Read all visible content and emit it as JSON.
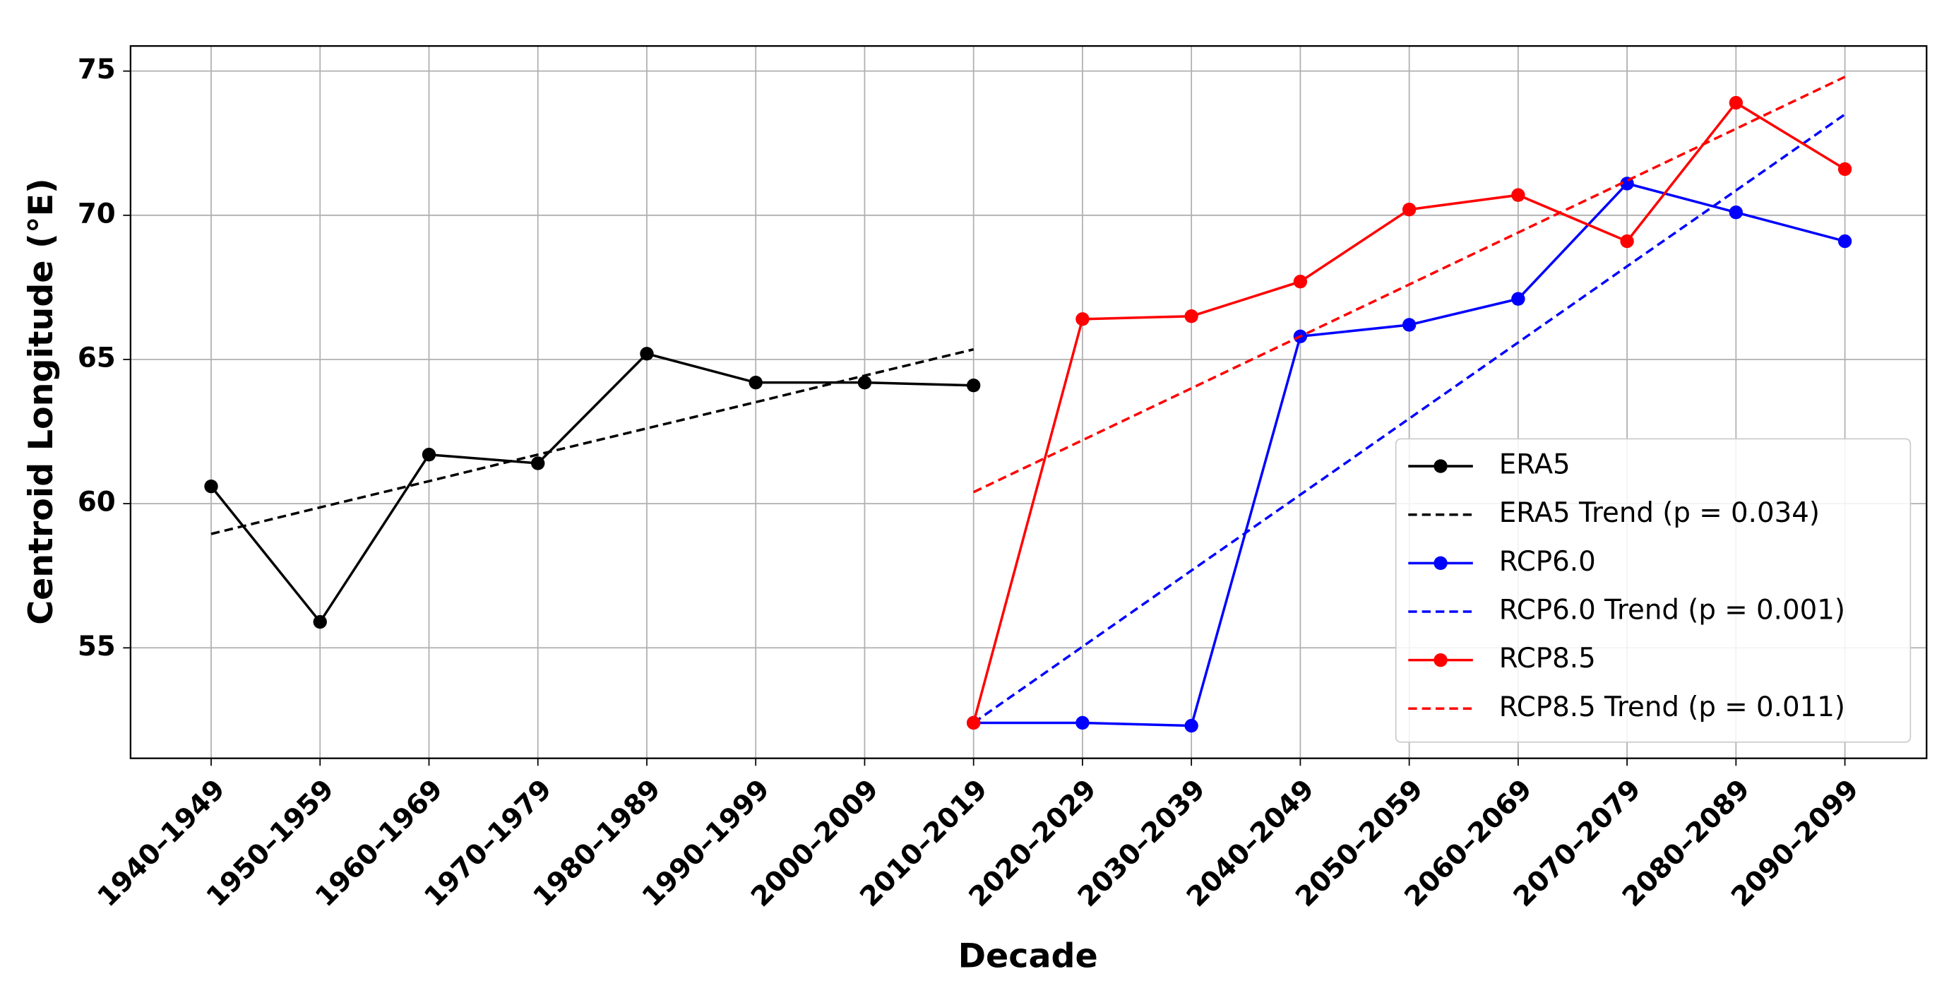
{
  "chart_data": {
    "type": "line",
    "xlabel": "Decade",
    "ylabel": "Centroid Longitude (°E)",
    "categories": [
      "1940–1949",
      "1950–1959",
      "1960–1969",
      "1970–1979",
      "1980–1989",
      "1990–1999",
      "2000–2009",
      "2010–2019",
      "2020–2029",
      "2030–2039",
      "2040–2049",
      "2050–2059",
      "2060–2069",
      "2070–2079",
      "2080–2089",
      "2090–2099"
    ],
    "ylim": [
      51.17,
      75.87
    ],
    "yticks": [
      55,
      60,
      65,
      70,
      75
    ],
    "grid": true,
    "legend": "lower right",
    "series": [
      {
        "name": "ERA5",
        "color": "#000000",
        "linestyle": "solid",
        "marker": true,
        "values": [
          60.6,
          55.9,
          61.7,
          61.4,
          65.2,
          64.2,
          64.2,
          64.1,
          null,
          null,
          null,
          null,
          null,
          null,
          null,
          null
        ]
      },
      {
        "name": "ERA5 Trend (p = 0.034)",
        "color": "#000000",
        "linestyle": "dashed",
        "marker": false,
        "values": [
          58.95,
          59.87,
          60.78,
          61.7,
          62.61,
          63.52,
          64.44,
          65.35,
          null,
          null,
          null,
          null,
          null,
          null,
          null,
          null
        ]
      },
      {
        "name": "RCP6.0",
        "color": "#0000ff",
        "linestyle": "solid",
        "marker": true,
        "values": [
          null,
          null,
          null,
          null,
          null,
          null,
          null,
          52.4,
          52.4,
          52.3,
          65.8,
          66.2,
          67.1,
          71.1,
          70.1,
          69.1
        ]
      },
      {
        "name": "RCP6.0 Trend (p = 0.001)",
        "color": "#0000ff",
        "linestyle": "dashed",
        "marker": false,
        "values": [
          null,
          null,
          null,
          null,
          null,
          null,
          null,
          52.4,
          55.04,
          57.68,
          60.31,
          62.95,
          65.59,
          68.23,
          70.86,
          73.5
        ]
      },
      {
        "name": "RCP8.5",
        "color": "#ff0000",
        "linestyle": "solid",
        "marker": true,
        "values": [
          null,
          null,
          null,
          null,
          null,
          null,
          null,
          52.4,
          66.4,
          66.5,
          67.7,
          70.2,
          70.7,
          69.1,
          73.9,
          71.6
        ]
      },
      {
        "name": "RCP8.5 Trend (p = 0.011)",
        "color": "#ff0000",
        "linestyle": "dashed",
        "marker": false,
        "values": [
          null,
          null,
          null,
          null,
          null,
          null,
          null,
          60.4,
          62.2,
          64.0,
          65.8,
          67.6,
          69.4,
          71.2,
          73.0,
          74.8
        ]
      }
    ]
  }
}
